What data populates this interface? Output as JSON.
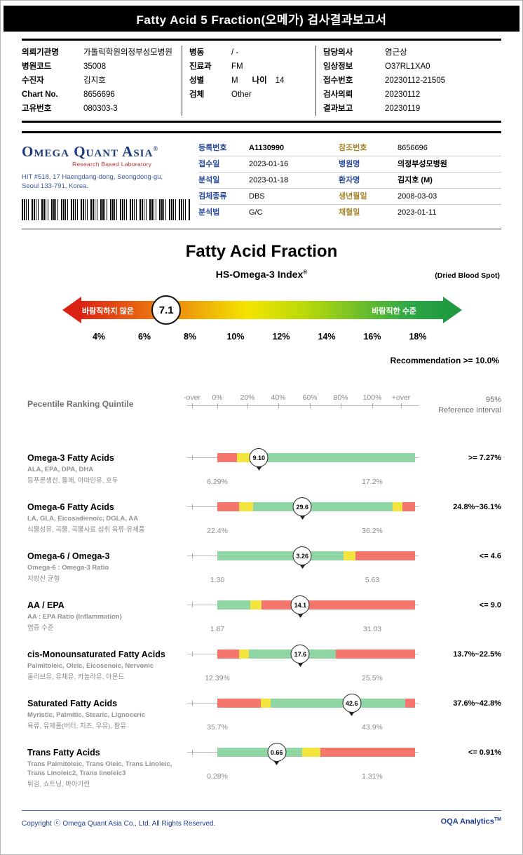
{
  "title_bar": "Fatty Acid 5 Fraction(오메가) 검사결과보고서",
  "colors": {
    "bar_red": "#f5766c",
    "bar_yellow": "#f3e43e",
    "bar_green": "#90d6a4",
    "accent_navy": "#1d3f94",
    "accent_gold": "#a8862a",
    "logo_red": "#c03030"
  },
  "patient": {
    "col1": [
      {
        "label": "의뢰기관명",
        "value": "가톨릭학원의정부성모병원"
      },
      {
        "label": "병원코드",
        "value": "35008"
      },
      {
        "label": "수진자",
        "value": "김지호"
      },
      {
        "label": "Chart No.",
        "value": "8656696"
      },
      {
        "label": "고유번호",
        "value": "080303-3"
      }
    ],
    "col2": [
      {
        "label": "병동",
        "value": "/ -"
      },
      {
        "label": "진료과",
        "value": "FM"
      },
      {
        "label": "성별",
        "value": "M",
        "extra_label": "나이",
        "extra_value": "14"
      },
      {
        "label": "검체",
        "value": "Other"
      }
    ],
    "col3": [
      {
        "label": "담당의사",
        "value": "염근상"
      },
      {
        "label": "임상정보",
        "value": "O37RL1XA0"
      },
      {
        "label": "접수번호",
        "value": "20230112-21505"
      },
      {
        "label": "검사의뢰",
        "value": "20230112"
      },
      {
        "label": "결과보고",
        "value": "20230119"
      }
    ]
  },
  "lab": {
    "logo_line1": "Omega Quant Asia",
    "logo_reg": "®",
    "logo_sub": "Research Based Laboratory",
    "address1": "HIT #518, 17 Haengdang-dong, Seongdong-gu,",
    "address2": "Seoul 133-791, Korea.",
    "mid": [
      {
        "label": "등록번호",
        "value": "A1130990",
        "value_bold": true
      },
      {
        "label": "접수일",
        "value": "2023-01-16"
      },
      {
        "label": "분석일",
        "value": "2023-01-18"
      },
      {
        "label": "검체종류",
        "value": "DBS"
      },
      {
        "label": "분석법",
        "value": "G/C"
      }
    ],
    "right": [
      {
        "label": "참조번호",
        "value": "8656696",
        "label_style": "gold"
      },
      {
        "label": "병원명",
        "value": "의정부성모병원",
        "value_bold": true
      },
      {
        "label": "환자명",
        "value": "김지호 (M)",
        "value_bold": true
      },
      {
        "label": "생년월일",
        "value": "2008-03-03",
        "label_style": "gold"
      },
      {
        "label": "채혈일",
        "value": "2023-01-11",
        "label_style": "gold"
      }
    ]
  },
  "fraction": {
    "title": "Fatty Acid Fraction",
    "subtitle": "HS-Omega-3 Index",
    "subtitle_reg": "®",
    "subtitle_right": "(Dried Blood Spot)",
    "arrow_left_label": "바람직하지 않은",
    "arrow_right_label": "바람직한 수준",
    "marker_value": "7.1",
    "marker_pos_pct": 26,
    "scale": [
      "4%",
      "6%",
      "8%",
      "10%",
      "12%",
      "14%",
      "16%",
      "18%"
    ],
    "recommendation": "Recommendation  >= 10.0%"
  },
  "ranking": {
    "header_left": "Pecentile Ranking Quintile",
    "scale": [
      "-over",
      "0%",
      "20%",
      "40%",
      "60%",
      "80%",
      "100%",
      "+over"
    ],
    "header_right_line1": "95%",
    "header_right_line2": "Reference Interval",
    "rows": [
      {
        "title": "Omega-3 Fatty Acids",
        "sub_en": "ALA, EPA, DPA, DHA",
        "sub_ko": "등푸른생선, 들깨, 아마인유, 호두",
        "value": "9.10",
        "marker_pct": 21,
        "segments": [
          {
            "color": "red",
            "width_pct": 10
          },
          {
            "color": "yellow",
            "width_pct": 6.5
          },
          {
            "color": "green",
            "width_pct": 83.5
          }
        ],
        "range_low": "6.29%",
        "range_high": "17.2%",
        "reference": ">= 7.27%"
      },
      {
        "title": "Omega-6 Fatty Acids",
        "sub_en": "LA, GLA, Eicosadienoic, DGLA, AA",
        "sub_ko": "식물성유, 곡물, 곡물사료 섭취 육류·유제품",
        "value": "29.6",
        "marker_pct": 43,
        "segments": [
          {
            "color": "red",
            "width_pct": 11
          },
          {
            "color": "yellow",
            "width_pct": 7
          },
          {
            "color": "green",
            "width_pct": 70.5
          },
          {
            "color": "yellow",
            "width_pct": 5
          },
          {
            "color": "red",
            "width_pct": 6.5
          }
        ],
        "range_low": "22.4%",
        "range_high": "36.2%",
        "reference": "24.8%~36.1%"
      },
      {
        "title": "Omega-6 / Omega-3",
        "sub_en": "Omega-6 : Omega-3 Ratio",
        "sub_ko": "지방산 균형",
        "value": "3.26",
        "marker_pct": 43,
        "segments": [
          {
            "color": "green",
            "width_pct": 64
          },
          {
            "color": "yellow",
            "width_pct": 6
          },
          {
            "color": "red",
            "width_pct": 30
          }
        ],
        "range_low": "1.30",
        "range_high": "5.63",
        "reference": "<= 4.6"
      },
      {
        "title": "AA / EPA",
        "sub_en": "AA : EPA Ratio (Inflammation)",
        "sub_ko": "염증 수준",
        "value": "14.1",
        "marker_pct": 42,
        "segments": [
          {
            "color": "green",
            "width_pct": 16.5
          },
          {
            "color": "yellow",
            "width_pct": 6
          },
          {
            "color": "red",
            "width_pct": 77.5
          }
        ],
        "range_low": "1.87",
        "range_high": "31.03",
        "reference": "<= 9.0"
      },
      {
        "title": "cis-Monounsaturated Fatty Acids",
        "sub_en": "Palmitoleic, Oleic, Eicosenoic, Nervonic",
        "sub_ko": "올리브유, 유채유, 카놀라유, 아몬드",
        "value": "17.6",
        "marker_pct": 42,
        "segments": [
          {
            "color": "red",
            "width_pct": 11
          },
          {
            "color": "yellow",
            "width_pct": 5
          },
          {
            "color": "green",
            "width_pct": 44
          },
          {
            "color": "red",
            "width_pct": 40
          }
        ],
        "range_low": "12.39%",
        "range_high": "25.5%",
        "reference": "13.7%~22.5%"
      },
      {
        "title": "Saturated Fatty Acids",
        "sub_en": "Myristic, Palmitic, Stearic, Lignoceric",
        "sub_ko": "육류, 유제품(버터, 치즈, 우유), 팜유",
        "value": "42.6",
        "marker_pct": 68,
        "segments": [
          {
            "color": "red",
            "width_pct": 22
          },
          {
            "color": "yellow",
            "width_pct": 5
          },
          {
            "color": "green",
            "width_pct": 68
          },
          {
            "color": "red",
            "width_pct": 5
          }
        ],
        "range_low": "35.7%",
        "range_high": "43.9%",
        "reference": "37.6%~42.8%"
      },
      {
        "title": "Trans Fatty Acids",
        "sub_en": "Trans Palmitoleic, Trans Oleic, Trans Linoleic, Trans Linoleic2, Trans linoleic3",
        "sub_ko": "튀김, 쇼트닝, 마아가린",
        "value": "0.66",
        "marker_pct": 30,
        "segments": [
          {
            "color": "green",
            "width_pct": 43
          },
          {
            "color": "yellow",
            "width_pct": 9
          },
          {
            "color": "red",
            "width_pct": 48
          }
        ],
        "range_low": "0.28%",
        "range_high": "1.31%",
        "reference": "<= 0.91%"
      }
    ]
  },
  "footer": {
    "copyright": "Copyright ⓒ Omega Quant Asia Co., Ltd.  All Rights Reserved.",
    "brand": "OQA Analytics",
    "brand_tm": "TM"
  }
}
